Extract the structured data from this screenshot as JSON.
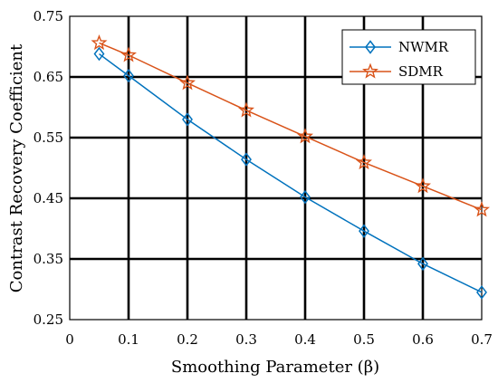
{
  "chart_data": {
    "type": "line",
    "xlabel": "Smoothing Parameter (β)",
    "ylabel": "Contrast Recovery Coefficient",
    "xlim": [
      0,
      0.7
    ],
    "ylim": [
      0.25,
      0.75
    ],
    "xticks": [
      0,
      0.1,
      0.2,
      0.3,
      0.4,
      0.5,
      0.6,
      0.7
    ],
    "xtick_labels": [
      "0",
      "0.1",
      "0.2",
      "0.3",
      "0.4",
      "0.5",
      "0.6",
      "0.7"
    ],
    "yticks": [
      0.25,
      0.35,
      0.45,
      0.55,
      0.65,
      0.75
    ],
    "ytick_labels": [
      "0.25",
      "0.35",
      "0.45",
      "0.55",
      "0.65",
      "0.75"
    ],
    "grid": true,
    "legend_position": "top-right",
    "x": [
      0.05,
      0.1,
      0.2,
      0.3,
      0.4,
      0.5,
      0.6,
      0.7
    ],
    "series": [
      {
        "name": "NWMR",
        "color": "#0072BD",
        "marker": "diamond",
        "values": [
          0.688,
          0.652,
          0.58,
          0.514,
          0.452,
          0.396,
          0.342,
          0.295
        ]
      },
      {
        "name": "SDMR",
        "color": "#D95319",
        "marker": "star",
        "values": [
          0.706,
          0.686,
          0.64,
          0.595,
          0.552,
          0.509,
          0.47,
          0.431
        ]
      }
    ]
  }
}
